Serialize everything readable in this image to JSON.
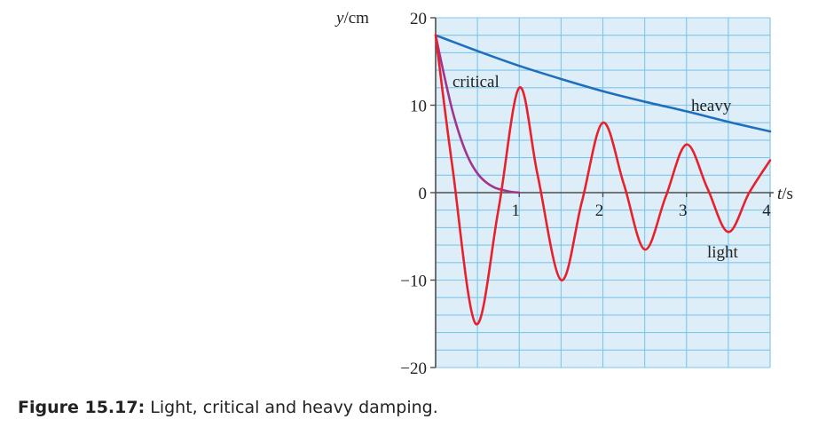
{
  "caption": {
    "label": "Figure 15.17:",
    "text": "Light, critical and heavy damping."
  },
  "colors": {
    "plot_bg": "#ddeef9",
    "grid": "#7ec6ea",
    "axis": "#4d4d4d",
    "heavy": "#1f6fbf",
    "critical": "#a0358f",
    "light": "#e8202c"
  },
  "chart_data": {
    "type": "line",
    "xlabel": "t / s",
    "ylabel": "y / cm",
    "xlim": [
      0,
      4
    ],
    "ylim": [
      -20,
      20
    ],
    "x_ticks": [
      1,
      2,
      3,
      4
    ],
    "x_tick_labels": [
      "1",
      "2",
      "3",
      "4"
    ],
    "y_ticks": [
      20,
      10,
      0,
      -10,
      -20
    ],
    "y_tick_labels": [
      "20",
      "10",
      "0",
      "−10",
      "−20"
    ],
    "grid": true,
    "series": [
      {
        "name": "heavy",
        "color": "#1f6fbf",
        "x": [
          0,
          0.5,
          1,
          1.5,
          2,
          2.5,
          3,
          3.5,
          4
        ],
        "y": [
          18,
          16.2,
          14.5,
          13,
          11.6,
          10.4,
          9.3,
          8.1,
          7
        ]
      },
      {
        "name": "critical",
        "color": "#a0358f",
        "x": [
          0,
          0.1,
          0.2,
          0.3,
          0.4,
          0.5,
          0.6,
          0.7,
          0.8,
          0.9,
          1.0
        ],
        "y": [
          18,
          13.5,
          9.4,
          6.2,
          3.8,
          2.2,
          1.2,
          0.6,
          0.3,
          0.1,
          0
        ]
      },
      {
        "name": "light",
        "color": "#e8202c",
        "x": [
          0,
          0.2,
          0.48,
          0.75,
          1.0,
          1.22,
          1.5,
          1.75,
          2.0,
          2.25,
          2.5,
          2.75,
          3.0,
          3.25,
          3.5,
          3.75,
          4.0
        ],
        "y": [
          18,
          3,
          -15,
          -2,
          12,
          2,
          -10,
          -1,
          8,
          1,
          -6.5,
          -0.5,
          5.5,
          0.5,
          -4.5,
          0,
          3.7
        ]
      }
    ],
    "annotations": [
      "critical",
      "heavy",
      "light"
    ]
  }
}
